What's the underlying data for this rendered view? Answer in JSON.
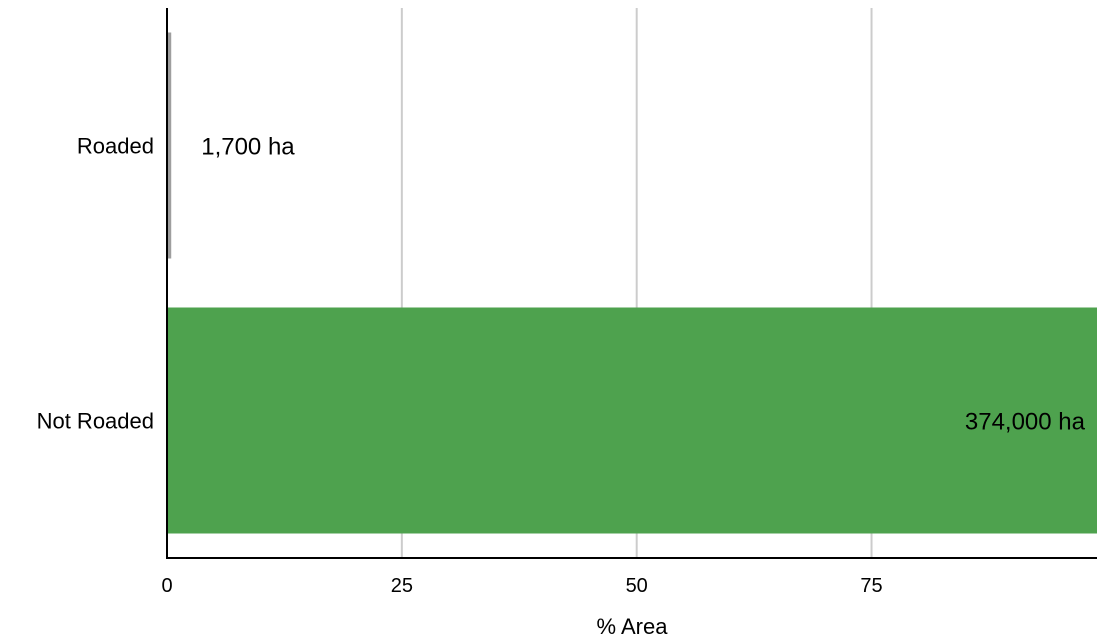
{
  "chart_data": {
    "type": "bar",
    "orientation": "horizontal",
    "categories": [
      "Roaded",
      "Not Roaded"
    ],
    "values": [
      0.45,
      99.55
    ],
    "data_labels": [
      "1,700 ha",
      "374,000 ha"
    ],
    "xlabel": "% Area",
    "ylabel": "",
    "xlim": [
      0,
      99
    ],
    "xticks": [
      0,
      25,
      50,
      75
    ],
    "xtick_labels": [
      "0",
      "25",
      "50",
      "75"
    ],
    "grid": "vertical",
    "legend": "none",
    "bar_colors": [
      "#9e9e9e",
      "#4ea24e"
    ],
    "grid_color": "#cccccc",
    "axis_color": "#000000"
  }
}
